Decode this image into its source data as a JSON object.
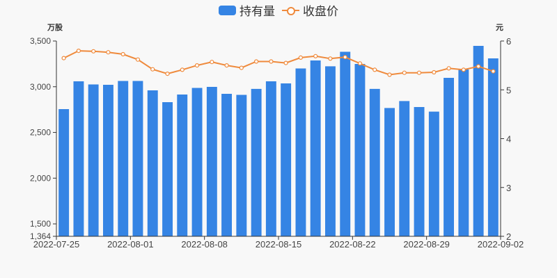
{
  "legend": {
    "bar_label": "持有量",
    "line_label": "收盘价"
  },
  "axes": {
    "left_unit": "万股",
    "right_unit": "元"
  },
  "colors": {
    "bar": "#3584e4",
    "line": "#ef8a3c",
    "axis": "#333333",
    "background": "#f8f8f8"
  },
  "chart_data": {
    "type": "bar+line",
    "title": "",
    "legend": [
      "持有量",
      "收盘价"
    ],
    "legend_position": "top-center",
    "x": [
      "2022-07-25",
      "2022-07-26",
      "2022-07-27",
      "2022-07-28",
      "2022-07-29",
      "2022-08-01",
      "2022-08-02",
      "2022-08-03",
      "2022-08-04",
      "2022-08-05",
      "2022-08-08",
      "2022-08-09",
      "2022-08-10",
      "2022-08-11",
      "2022-08-12",
      "2022-08-15",
      "2022-08-16",
      "2022-08-17",
      "2022-08-18",
      "2022-08-19",
      "2022-08-22",
      "2022-08-23",
      "2022-08-24",
      "2022-08-25",
      "2022-08-26",
      "2022-08-29",
      "2022-08-30",
      "2022-08-31",
      "2022-09-01",
      "2022-09-02"
    ],
    "x_tick_labels": [
      "2022-07-25",
      "2022-08-01",
      "2022-08-08",
      "2022-08-15",
      "2022-08-22",
      "2022-08-29",
      "2022-09-02"
    ],
    "series": [
      {
        "name": "持有量",
        "type": "bar",
        "axis": "left",
        "values": [
          2755,
          3059,
          3025,
          3021,
          3063,
          3063,
          2960,
          2831,
          2915,
          2987,
          2998,
          2922,
          2911,
          2976,
          3059,
          3036,
          3200,
          3287,
          3223,
          3382,
          3249,
          2976,
          2767,
          2843,
          2778,
          2728,
          3097,
          3188,
          3447,
          3310
        ]
      },
      {
        "name": "收盘价",
        "type": "line",
        "axis": "right",
        "values": [
          5.65,
          5.8,
          5.79,
          5.77,
          5.73,
          5.62,
          5.42,
          5.33,
          5.41,
          5.5,
          5.57,
          5.5,
          5.45,
          5.58,
          5.58,
          5.55,
          5.66,
          5.69,
          5.64,
          5.67,
          5.54,
          5.41,
          5.31,
          5.35,
          5.35,
          5.36,
          5.44,
          5.41,
          5.48,
          5.38
        ]
      }
    ],
    "y_left": {
      "label": "万股",
      "min": 1364,
      "max": 3500,
      "ticks": [
        1364,
        1500,
        2000,
        2500,
        3000,
        3500
      ],
      "tick_labels": [
        "1,364",
        "1,500",
        "2,000",
        "2,500",
        "3,000",
        "3,500"
      ]
    },
    "y_right": {
      "label": "元",
      "min": 2,
      "max": 6,
      "ticks": [
        2,
        3,
        4,
        5,
        6
      ],
      "tick_labels": [
        "2",
        "3",
        "4",
        "5",
        "6"
      ]
    },
    "grid": false
  }
}
